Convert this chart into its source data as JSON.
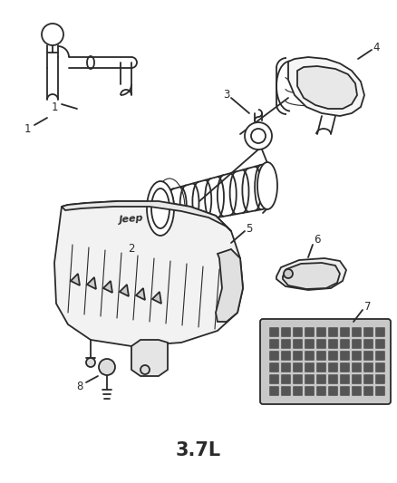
{
  "title": "3.7L",
  "bg_color": "#ffffff",
  "line_color": "#2a2a2a",
  "figsize": [
    4.38,
    5.33
  ],
  "dpi": 100,
  "title_fontsize": 15,
  "label_fontsize": 8.5,
  "xlim": [
    0,
    438
  ],
  "ylim": [
    0,
    533
  ]
}
